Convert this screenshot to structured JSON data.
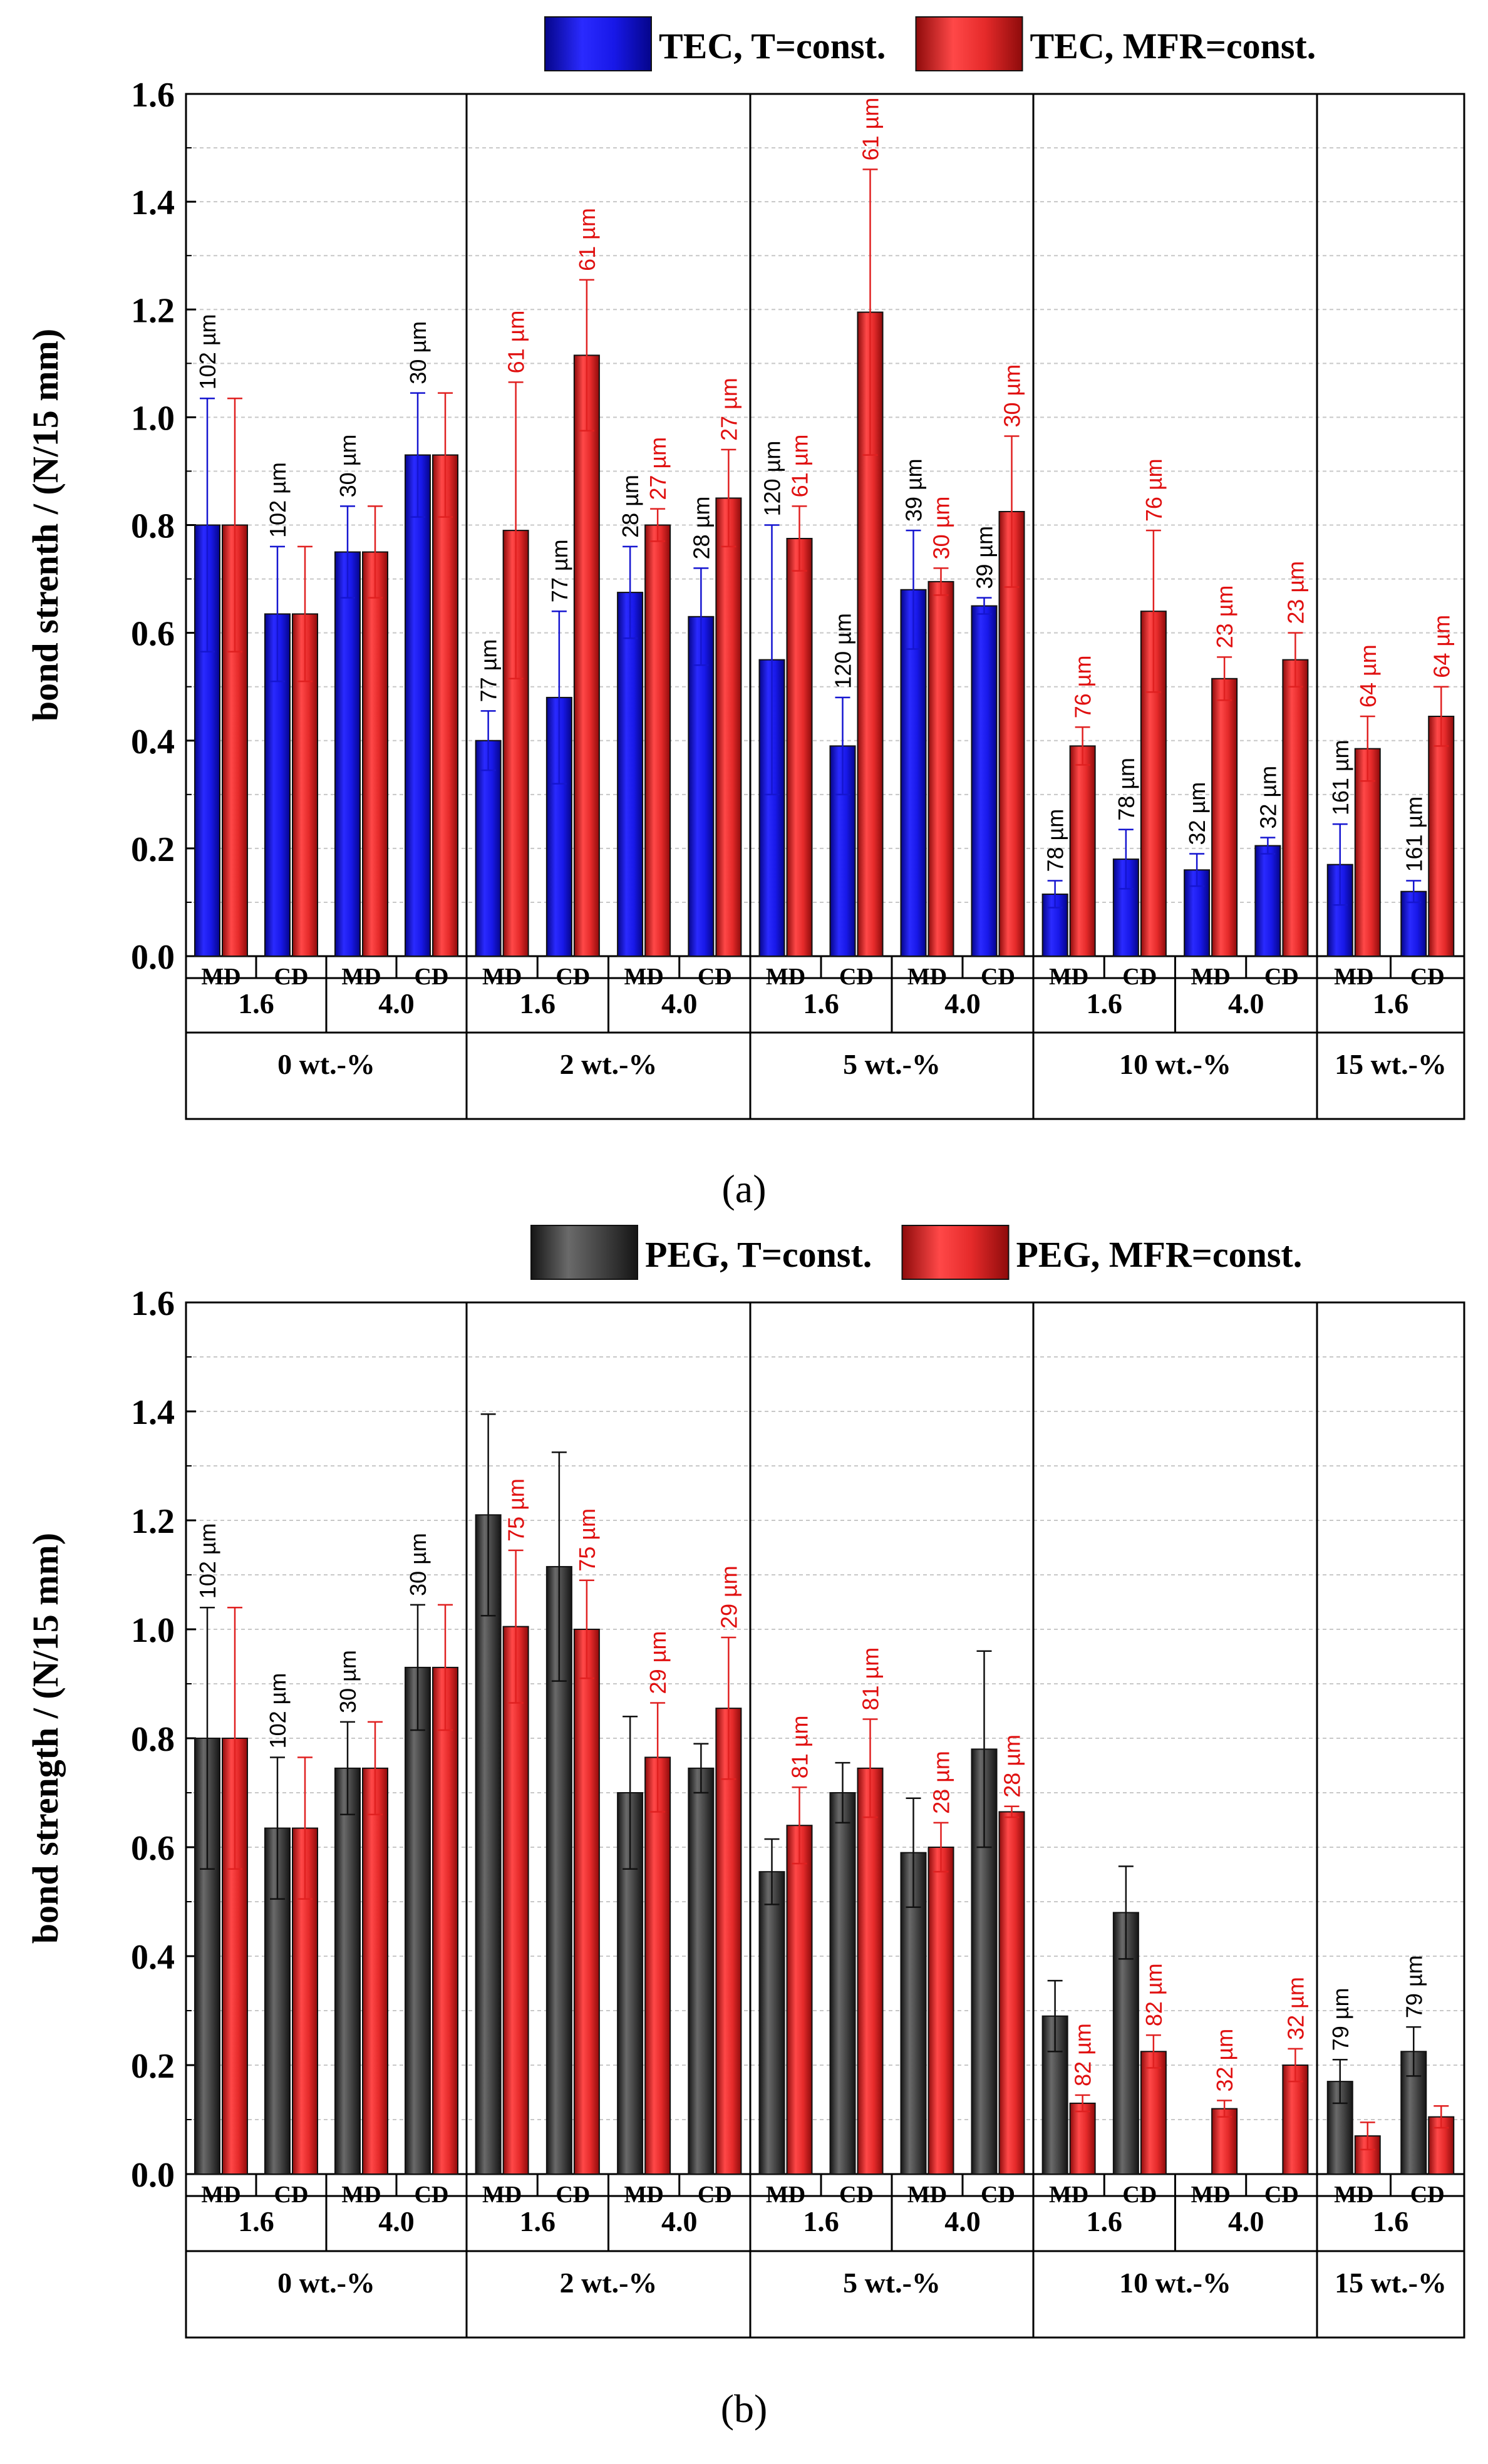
{
  "colors": {
    "tec_t_const": "#1010d8",
    "tec_mfr_const": "#e32424",
    "peg_t_const": "#3a3a3a",
    "peg_mfr_const": "#e32424",
    "label_red": "#e01010",
    "label_black": "#000000"
  },
  "chart_data": [
    {
      "type": "bar",
      "panel_label": "(a)",
      "ylabel": "bond strenth / (N/15 mm)",
      "ylim": [
        0,
        1.6
      ],
      "yticks": [
        "0.0",
        "0.2",
        "0.4",
        "0.6",
        "0.8",
        "1.0",
        "1.2",
        "1.4",
        "1.6"
      ],
      "grid": true,
      "legend_position": "top-right",
      "legend": [
        "TEC, T=const.",
        "TEC, MFR=const."
      ],
      "concentrations": [
        {
          "label": "0 wt.-%",
          "ratios": [
            {
              "label": "1.6",
              "dirs": [
                "MD",
                "CD"
              ]
            },
            {
              "label": "4.0",
              "dirs": [
                "MD",
                "CD"
              ]
            }
          ]
        },
        {
          "label": "2 wt.-%",
          "ratios": [
            {
              "label": "1.6",
              "dirs": [
                "MD",
                "CD"
              ]
            },
            {
              "label": "4.0",
              "dirs": [
                "MD",
                "CD"
              ]
            }
          ]
        },
        {
          "label": "5 wt.-%",
          "ratios": [
            {
              "label": "1.6",
              "dirs": [
                "MD",
                "CD"
              ]
            },
            {
              "label": "4.0",
              "dirs": [
                "MD",
                "CD"
              ]
            }
          ]
        },
        {
          "label": "10 wt.-%",
          "ratios": [
            {
              "label": "1.6",
              "dirs": [
                "MD",
                "CD"
              ]
            },
            {
              "label": "4.0",
              "dirs": [
                "MD",
                "CD"
              ]
            }
          ]
        },
        {
          "label": "15 wt.-%",
          "ratios": [
            {
              "label": "1.6",
              "dirs": [
                "MD",
                "CD"
              ]
            }
          ]
        }
      ],
      "series": [
        {
          "name": "TEC, T=const.",
          "values": [
            0.8,
            0.635,
            0.75,
            0.93,
            0.4,
            0.48,
            0.675,
            0.63,
            0.55,
            0.39,
            0.68,
            0.65,
            0.115,
            0.18,
            0.16,
            0.205,
            0.17,
            0.12
          ],
          "errors": [
            0.235,
            0.125,
            0.085,
            0.115,
            0.055,
            0.16,
            0.085,
            0.09,
            0.25,
            0.09,
            0.11,
            0.015,
            0.025,
            0.055,
            0.03,
            0.015,
            0.075,
            0.02
          ],
          "labels": [
            "102 µm",
            "102 µm",
            "30 µm",
            "30 µm",
            "77 µm",
            "77 µm",
            "28 µm",
            "28 µm",
            "120 µm",
            "120 µm",
            "39 µm",
            "39 µm",
            "78 µm",
            "78 µm",
            "32 µm",
            "32 µm",
            "161 µm",
            "161 µm"
          ]
        },
        {
          "name": "TEC, MFR=const.",
          "values": [
            0.8,
            0.635,
            0.75,
            0.93,
            0.79,
            1.115,
            0.8,
            0.85,
            0.775,
            1.195,
            0.695,
            0.825,
            0.39,
            0.64,
            0.515,
            0.55,
            0.385,
            0.445
          ],
          "errors": [
            0.235,
            0.125,
            0.085,
            0.115,
            0.275,
            0.14,
            0.03,
            0.09,
            0.06,
            0.265,
            0.025,
            0.14,
            0.035,
            0.15,
            0.04,
            0.05,
            0.06,
            0.055
          ],
          "labels": [
            "",
            "",
            "",
            "",
            "61 µm",
            "61 µm",
            "27 µm",
            "27 µm",
            "61 µm",
            "61 µm",
            "30 µm",
            "30 µm",
            "76 µm",
            "76 µm",
            "23 µm",
            "23 µm",
            "64 µm",
            "64 µm"
          ]
        }
      ]
    },
    {
      "type": "bar",
      "panel_label": "(b)",
      "ylabel": "bond strength / (N/15 mm)",
      "ylim": [
        0,
        1.6
      ],
      "yticks": [
        "0.0",
        "0.2",
        "0.4",
        "0.6",
        "0.8",
        "1.0",
        "1.2",
        "1.4",
        "1.6"
      ],
      "grid": true,
      "legend_position": "top-right",
      "legend": [
        "PEG, T=const.",
        "PEG, MFR=const."
      ],
      "concentrations": [
        {
          "label": "0 wt.-%",
          "ratios": [
            {
              "label": "1.6",
              "dirs": [
                "MD",
                "CD"
              ]
            },
            {
              "label": "4.0",
              "dirs": [
                "MD",
                "CD"
              ]
            }
          ]
        },
        {
          "label": "2 wt.-%",
          "ratios": [
            {
              "label": "1.6",
              "dirs": [
                "MD",
                "CD"
              ]
            },
            {
              "label": "4.0",
              "dirs": [
                "MD",
                "CD"
              ]
            }
          ]
        },
        {
          "label": "5 wt.-%",
          "ratios": [
            {
              "label": "1.6",
              "dirs": [
                "MD",
                "CD"
              ]
            },
            {
              "label": "4.0",
              "dirs": [
                "MD",
                "CD"
              ]
            }
          ]
        },
        {
          "label": "10 wt.-%",
          "ratios": [
            {
              "label": "1.6",
              "dirs": [
                "MD",
                "CD"
              ]
            },
            {
              "label": "4.0",
              "dirs": [
                "MD",
                "CD"
              ]
            }
          ]
        },
        {
          "label": "15 wt.-%",
          "ratios": [
            {
              "label": "1.6",
              "dirs": [
                "MD",
                "CD"
              ]
            }
          ]
        }
      ],
      "series": [
        {
          "name": "PEG, T=const.",
          "values": [
            0.8,
            0.635,
            0.745,
            0.93,
            1.21,
            1.115,
            0.7,
            0.745,
            0.555,
            0.7,
            0.59,
            0.78,
            0.29,
            0.48,
            null,
            null,
            0.17,
            0.225
          ],
          "errors": [
            0.24,
            0.13,
            0.085,
            0.115,
            0.185,
            0.21,
            0.14,
            0.045,
            0.06,
            0.055,
            0.1,
            0.18,
            0.065,
            0.085,
            null,
            null,
            0.04,
            0.045
          ],
          "labels": [
            "102 µm",
            "102 µm",
            "30 µm",
            "30 µm",
            "",
            "",
            "",
            "",
            "",
            "",
            "",
            "",
            "",
            "",
            "",
            "",
            "79 µm",
            "79 µm"
          ]
        },
        {
          "name": "PEG, MFR=const.",
          "values": [
            0.8,
            0.635,
            0.745,
            0.93,
            1.005,
            1.0,
            0.765,
            0.855,
            0.64,
            0.745,
            0.6,
            0.665,
            0.13,
            0.225,
            0.12,
            0.2,
            0.07,
            0.105
          ],
          "errors": [
            0.24,
            0.13,
            0.085,
            0.115,
            0.14,
            0.09,
            0.1,
            0.13,
            0.07,
            0.09,
            0.045,
            0.01,
            0.015,
            0.03,
            0.015,
            0.03,
            0.025,
            0.02
          ],
          "labels": [
            "",
            "",
            "",
            "",
            "75 µm",
            "75 µm",
            "29 µm",
            "29 µm",
            "81 µm",
            "81 µm",
            "28 µm",
            "28 µm",
            "82 µm",
            "82 µm",
            "32 µm",
            "32 µm",
            "",
            ""
          ]
        }
      ]
    }
  ]
}
